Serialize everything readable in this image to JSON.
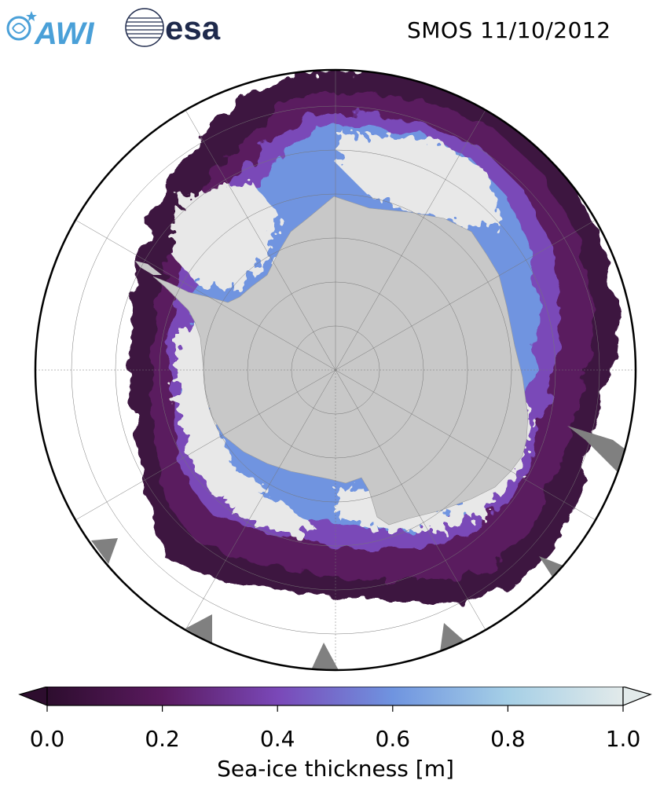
{
  "header": {
    "logos": [
      {
        "name": "AWI",
        "icon": "awi-logo",
        "color": "#4aa0d8"
      },
      {
        "name": "esa",
        "icon": "esa-logo",
        "color": "#1f2a4c"
      }
    ],
    "title": "SMOS 11/10/2012"
  },
  "map": {
    "projection": "south-polar-stereographic",
    "land_color": "#c8c8c8",
    "open_ocean_color": "#ffffff",
    "thick_ice_color": "#e8e8e8",
    "gridlines": "on"
  },
  "colorbar": {
    "label": "Sea-ice thickness [m]",
    "min": 0.0,
    "max": 1.0,
    "ticks": [
      "0.0",
      "0.2",
      "0.4",
      "0.6",
      "0.8",
      "1.0"
    ],
    "colors": [
      "#2d0d2e",
      "#5a1a5f",
      "#7a48b8",
      "#6f94e0",
      "#a5cfe6",
      "#e2eaea"
    ],
    "extend": "both"
  }
}
